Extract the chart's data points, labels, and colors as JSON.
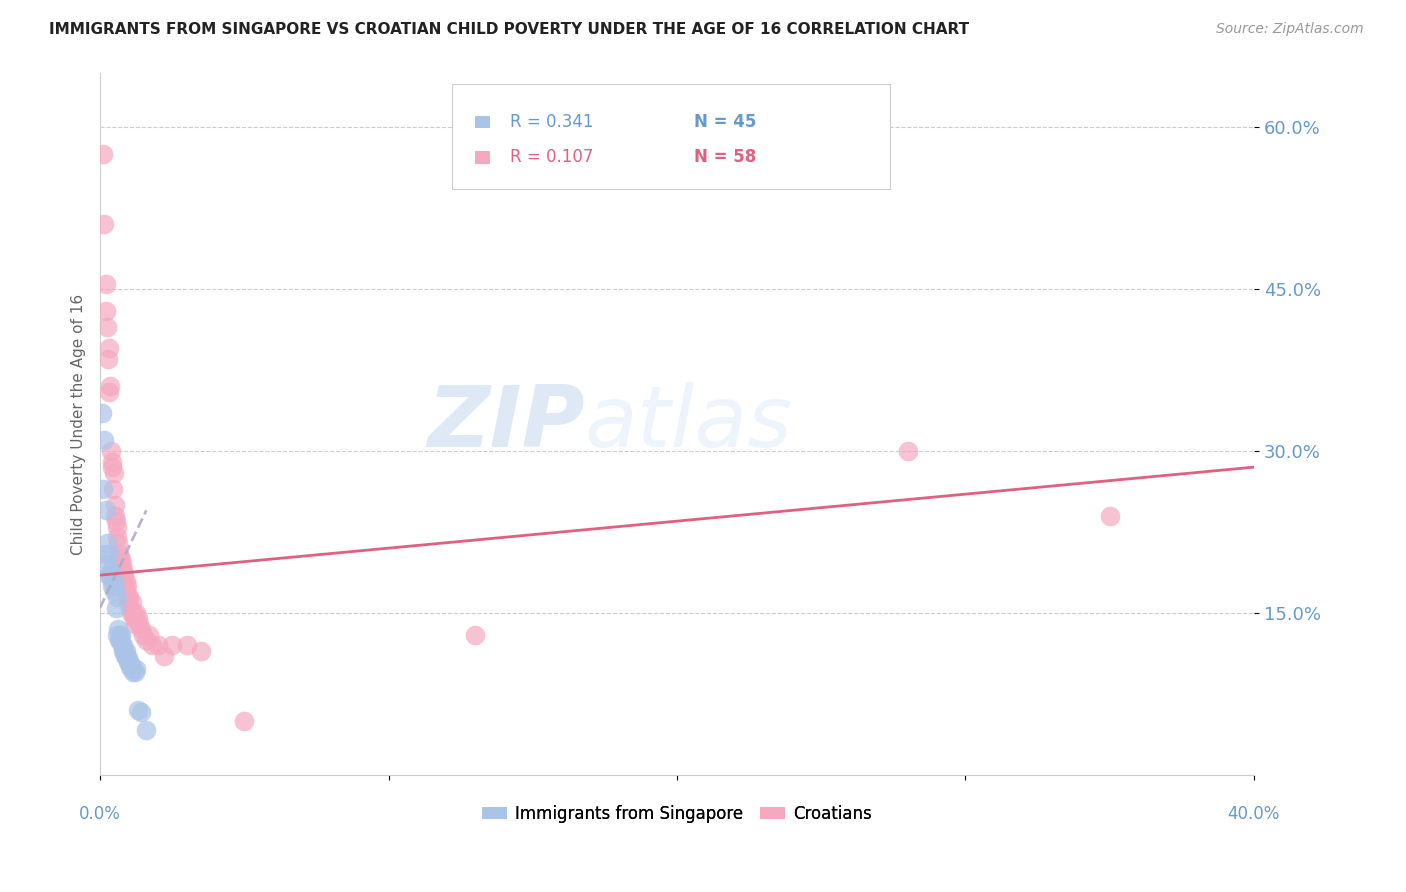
{
  "title": "IMMIGRANTS FROM SINGAPORE VS CROATIAN CHILD POVERTY UNDER THE AGE OF 16 CORRELATION CHART",
  "source": "Source: ZipAtlas.com",
  "ylabel": "Child Poverty Under the Age of 16",
  "ytick_labels": [
    "15.0%",
    "30.0%",
    "45.0%",
    "60.0%"
  ],
  "ytick_values": [
    0.15,
    0.3,
    0.45,
    0.6
  ],
  "xlim": [
    0.0,
    0.4
  ],
  "ylim": [
    0.0,
    0.65
  ],
  "watermark": "ZIPatlas",
  "sg_color": "#aac4e8",
  "cr_color": "#f5a8c0",
  "sg_trendline_color": "#aaaacc",
  "cr_trendline_color": "#e06080",
  "grid_color": "#cccccc",
  "axis_label_color": "#6699cc",
  "sg_legend_color": "#6699cc",
  "cr_legend_color": "#e06080",
  "sg_points": [
    [
      0.0005,
      0.335
    ],
    [
      0.001,
      0.265
    ],
    [
      0.0012,
      0.31
    ],
    [
      0.0018,
      0.205
    ],
    [
      0.002,
      0.195
    ],
    [
      0.0022,
      0.245
    ],
    [
      0.0025,
      0.215
    ],
    [
      0.0028,
      0.185
    ],
    [
      0.003,
      0.205
    ],
    [
      0.0035,
      0.185
    ],
    [
      0.0038,
      0.19
    ],
    [
      0.004,
      0.175
    ],
    [
      0.0042,
      0.18
    ],
    [
      0.0045,
      0.185
    ],
    [
      0.0048,
      0.17
    ],
    [
      0.005,
      0.175
    ],
    [
      0.0055,
      0.155
    ],
    [
      0.0058,
      0.165
    ],
    [
      0.006,
      0.13
    ],
    [
      0.0062,
      0.135
    ],
    [
      0.0065,
      0.125
    ],
    [
      0.0068,
      0.13
    ],
    [
      0.007,
      0.125
    ],
    [
      0.0072,
      0.13
    ],
    [
      0.0075,
      0.12
    ],
    [
      0.0078,
      0.115
    ],
    [
      0.008,
      0.12
    ],
    [
      0.0082,
      0.115
    ],
    [
      0.0085,
      0.11
    ],
    [
      0.0088,
      0.115
    ],
    [
      0.009,
      0.11
    ],
    [
      0.0092,
      0.108
    ],
    [
      0.0095,
      0.105
    ],
    [
      0.0098,
      0.108
    ],
    [
      0.01,
      0.105
    ],
    [
      0.0105,
      0.1
    ],
    [
      0.0108,
      0.102
    ],
    [
      0.011,
      0.1
    ],
    [
      0.0112,
      0.098
    ],
    [
      0.0115,
      0.095
    ],
    [
      0.012,
      0.095
    ],
    [
      0.0125,
      0.098
    ],
    [
      0.013,
      0.06
    ],
    [
      0.014,
      0.058
    ],
    [
      0.016,
      0.042
    ]
  ],
  "cr_points": [
    [
      0.001,
      0.575
    ],
    [
      0.0015,
      0.51
    ],
    [
      0.002,
      0.455
    ],
    [
      0.0022,
      0.43
    ],
    [
      0.0025,
      0.415
    ],
    [
      0.0028,
      0.385
    ],
    [
      0.003,
      0.395
    ],
    [
      0.0032,
      0.355
    ],
    [
      0.0035,
      0.36
    ],
    [
      0.0038,
      0.3
    ],
    [
      0.004,
      0.29
    ],
    [
      0.0042,
      0.285
    ],
    [
      0.0045,
      0.265
    ],
    [
      0.0048,
      0.28
    ],
    [
      0.005,
      0.25
    ],
    [
      0.0052,
      0.24
    ],
    [
      0.0055,
      0.235
    ],
    [
      0.0058,
      0.23
    ],
    [
      0.006,
      0.22
    ],
    [
      0.0062,
      0.215
    ],
    [
      0.0065,
      0.205
    ],
    [
      0.0068,
      0.2
    ],
    [
      0.007,
      0.195
    ],
    [
      0.0072,
      0.2
    ],
    [
      0.0075,
      0.195
    ],
    [
      0.0078,
      0.19
    ],
    [
      0.008,
      0.185
    ],
    [
      0.0082,
      0.185
    ],
    [
      0.0085,
      0.175
    ],
    [
      0.0088,
      0.18
    ],
    [
      0.009,
      0.17
    ],
    [
      0.0092,
      0.175
    ],
    [
      0.0095,
      0.165
    ],
    [
      0.0098,
      0.16
    ],
    [
      0.01,
      0.165
    ],
    [
      0.0105,
      0.155
    ],
    [
      0.0108,
      0.15
    ],
    [
      0.011,
      0.16
    ],
    [
      0.0115,
      0.15
    ],
    [
      0.0118,
      0.145
    ],
    [
      0.012,
      0.14
    ],
    [
      0.0125,
      0.15
    ],
    [
      0.013,
      0.145
    ],
    [
      0.0135,
      0.14
    ],
    [
      0.014,
      0.135
    ],
    [
      0.015,
      0.13
    ],
    [
      0.016,
      0.125
    ],
    [
      0.017,
      0.13
    ],
    [
      0.018,
      0.12
    ],
    [
      0.02,
      0.12
    ],
    [
      0.022,
      0.11
    ],
    [
      0.025,
      0.12
    ],
    [
      0.03,
      0.12
    ],
    [
      0.035,
      0.115
    ],
    [
      0.05,
      0.05
    ],
    [
      0.13,
      0.13
    ],
    [
      0.28,
      0.3
    ],
    [
      0.35,
      0.24
    ]
  ],
  "sg_trendline": [
    [
      0.0,
      0.155
    ],
    [
      0.016,
      0.245
    ]
  ],
  "cr_trendline": [
    [
      0.0,
      0.185
    ],
    [
      0.4,
      0.285
    ]
  ],
  "legend_r_sg": "R = 0.341",
  "legend_n_sg": "N = 45",
  "legend_r_cr": "R = 0.107",
  "legend_n_cr": "N = 58"
}
